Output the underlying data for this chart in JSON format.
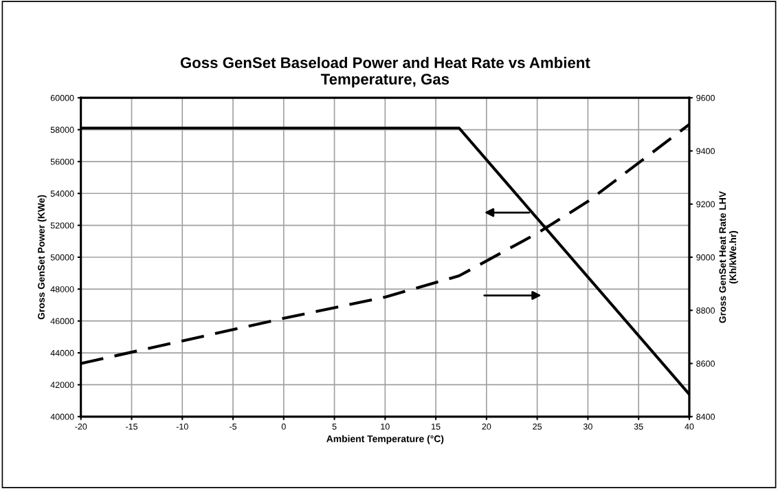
{
  "chart_data": {
    "type": "line",
    "title": "Goss GenSet Baseload Power and Heat Rate vs Ambient\nTemperature, Gas",
    "xlabel": "Ambient Temperature (°C)",
    "ylabel": "Gross GenSet Power (KWe)",
    "y2label": "Gross GenSet Heat Rate LHV\n(Kh/kWe.hr)",
    "series": [
      {
        "color": "#000000",
        "line_style": "solid",
        "x": [
          -20,
          17.3,
          40
        ],
        "values": [
          58100,
          58100,
          41400
        ]
      },
      {
        "color": "#000000",
        "line_style": "dashed",
        "axis": "y2",
        "x": [
          -20,
          -10,
          0,
          10,
          17.3,
          25,
          30,
          35,
          40
        ],
        "values": [
          8600,
          8685,
          8770,
          8850,
          8930,
          9090,
          9210,
          9355,
          9500
        ]
      }
    ],
    "xlim": [
      -20,
      40
    ],
    "xticks": [
      -20,
      -15,
      -10,
      -5,
      0,
      5,
      10,
      15,
      20,
      25,
      30,
      35,
      40
    ],
    "ylim": [
      40000,
      60000
    ],
    "yticks": [
      40000,
      42000,
      44000,
      46000,
      48000,
      50000,
      52000,
      54000,
      56000,
      58000,
      60000
    ],
    "y2lim": [
      8400,
      9600
    ],
    "y2ticks": [
      8400,
      8600,
      8800,
      9000,
      9200,
      9400,
      9600
    ],
    "grid": true,
    "legend": false
  }
}
